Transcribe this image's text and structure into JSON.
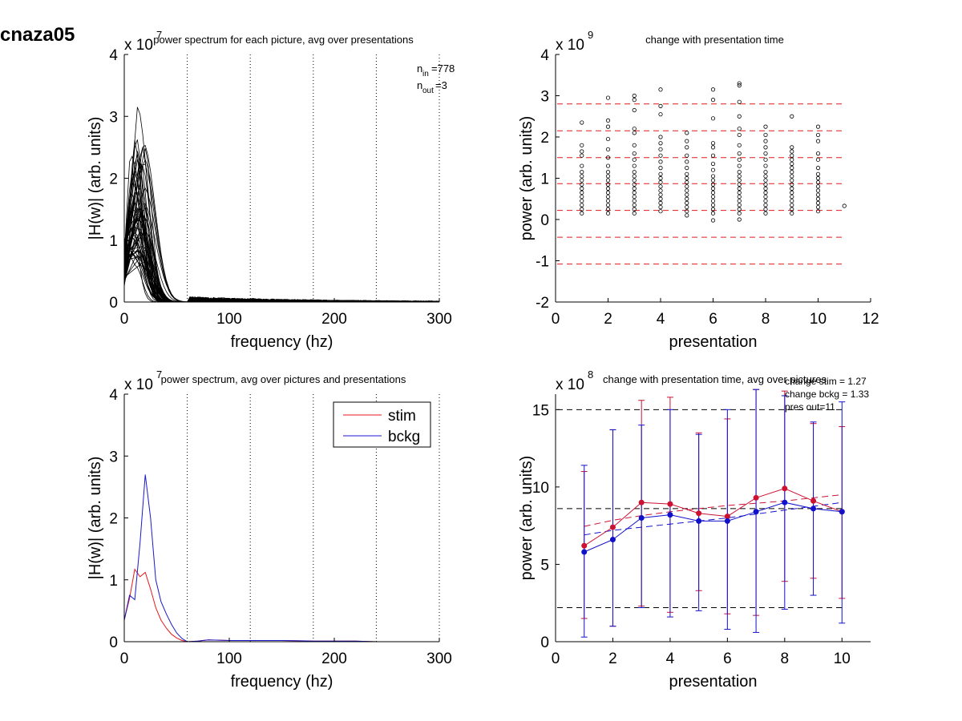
{
  "figure_title": "cnaza05",
  "chart_data": [
    {
      "id": "p1",
      "type": "line",
      "title": "power spectrum for each picture, avg over presentations",
      "xlabel": "frequency (hz)",
      "ylabel": "|H(w)| (arb. units)",
      "exponent_label": "x 10",
      "exponent": "7",
      "xlim": [
        0,
        300
      ],
      "ylim": [
        0,
        4
      ],
      "xticks": [
        "0",
        "100",
        "200",
        "300"
      ],
      "yticks": [
        "0",
        "1",
        "2",
        "3",
        "4"
      ],
      "vlines": [
        60,
        120,
        180,
        240,
        300
      ],
      "annotation": {
        "n_in_base": "n",
        "n_in_sub": "in",
        "n_in_value": "=778",
        "n_out_base": "n",
        "n_out_sub": "out",
        "n_out_value": "=3"
      },
      "freq_x": [
        0,
        5,
        10,
        15,
        20,
        25,
        30,
        35,
        40,
        45,
        50,
        55,
        60,
        65,
        70,
        75,
        80,
        90,
        100,
        110,
        120,
        140,
        160,
        180,
        200,
        220,
        240,
        260,
        280,
        300
      ],
      "shape_note": "many traces (about 60) with peaks between 0.5 and 3.15 near 5-20 Hz",
      "peak_max": 3.15,
      "curve_count": 60,
      "series_color": "#000000"
    },
    {
      "id": "p2",
      "type": "scatter",
      "title": "change with presentation time",
      "xlabel": "presentation",
      "ylabel": "power (arb. units)",
      "exponent_label": "x 10",
      "exponent": "9",
      "xlim": [
        0,
        12
      ],
      "ylim": [
        -2,
        4
      ],
      "xticks": [
        "0",
        "2",
        "4",
        "6",
        "8",
        "10",
        "12"
      ],
      "yticks": [
        "-2",
        "-1",
        "0",
        "1",
        "2",
        "3",
        "4"
      ],
      "hlines": [
        2.8,
        2.15,
        1.5,
        0.87,
        0.22,
        -0.43,
        -1.08
      ],
      "hline_color": "#e41a1c",
      "points": [
        {
          "x": 1,
          "y": [
            0.15,
            0.25,
            0.35,
            0.45,
            0.55,
            0.65,
            0.75,
            0.85,
            0.95,
            1.05,
            1.15,
            1.3,
            1.55,
            1.65,
            1.8,
            2.35
          ]
        },
        {
          "x": 2,
          "y": [
            0.15,
            0.25,
            0.35,
            0.45,
            0.55,
            0.65,
            0.75,
            0.85,
            0.95,
            1.05,
            1.15,
            1.3,
            1.5,
            1.7,
            1.95,
            2.25,
            2.4,
            2.95
          ]
        },
        {
          "x": 3,
          "y": [
            0.15,
            0.25,
            0.35,
            0.45,
            0.55,
            0.65,
            0.75,
            0.85,
            0.95,
            1.05,
            1.15,
            1.3,
            1.45,
            1.6,
            1.8,
            2.1,
            2.2,
            2.65,
            2.9,
            3.0
          ]
        },
        {
          "x": 4,
          "y": [
            0.2,
            0.3,
            0.4,
            0.5,
            0.6,
            0.7,
            0.8,
            0.9,
            1.0,
            1.1,
            1.25,
            1.4,
            1.55,
            1.7,
            1.85,
            2.0,
            2.55,
            2.75,
            3.15
          ]
        },
        {
          "x": 5,
          "y": [
            0.1,
            0.2,
            0.3,
            0.4,
            0.5,
            0.6,
            0.7,
            0.8,
            0.9,
            1.0,
            1.1,
            1.25,
            1.4,
            1.55,
            1.75,
            1.9,
            2.1
          ]
        },
        {
          "x": 6,
          "y": [
            -0.02,
            0.15,
            0.25,
            0.35,
            0.45,
            0.55,
            0.65,
            0.75,
            0.85,
            0.95,
            1.05,
            1.2,
            1.35,
            1.55,
            1.75,
            1.85,
            2.45,
            2.9,
            3.15
          ]
        },
        {
          "x": 7,
          "y": [
            0.0,
            0.15,
            0.25,
            0.35,
            0.45,
            0.55,
            0.65,
            0.75,
            0.85,
            0.95,
            1.05,
            1.15,
            1.3,
            1.45,
            1.6,
            1.8,
            2.05,
            2.2,
            2.5,
            2.85,
            3.25,
            3.3
          ]
        },
        {
          "x": 8,
          "y": [
            0.15,
            0.25,
            0.35,
            0.45,
            0.55,
            0.65,
            0.75,
            0.85,
            0.95,
            1.05,
            1.15,
            1.3,
            1.45,
            1.6,
            1.75,
            1.9,
            2.05,
            2.25
          ]
        },
        {
          "x": 9,
          "y": [
            0.15,
            0.25,
            0.35,
            0.45,
            0.55,
            0.65,
            0.75,
            0.85,
            0.95,
            1.05,
            1.15,
            1.25,
            1.35,
            1.45,
            1.55,
            1.65,
            1.75,
            2.5
          ]
        },
        {
          "x": 10,
          "y": [
            0.2,
            0.3,
            0.4,
            0.5,
            0.6,
            0.7,
            0.8,
            0.9,
            1.0,
            1.1,
            1.25,
            1.45,
            1.6,
            1.9,
            2.05,
            2.25
          ]
        },
        {
          "x": 11,
          "y": [
            0.33
          ]
        }
      ]
    },
    {
      "id": "p3",
      "type": "line",
      "title": "power spectrum, avg over pictures and presentations",
      "xlabel": "frequency (hz)",
      "ylabel": "|H(w)| (arb. units)",
      "exponent_label": "x 10",
      "exponent": "7",
      "xlim": [
        0,
        300
      ],
      "ylim": [
        0,
        4
      ],
      "xticks": [
        "0",
        "100",
        "200",
        "300"
      ],
      "yticks": [
        "0",
        "1",
        "2",
        "3",
        "4"
      ],
      "vlines": [
        60,
        120,
        180,
        240,
        300
      ],
      "legend": [
        {
          "name": "stim",
          "color": "#e41a1c"
        },
        {
          "name": "bckg",
          "color": "#1a1acc"
        }
      ],
      "series": [
        {
          "name": "stim",
          "color": "#e41a1c",
          "x": [
            0,
            5,
            10,
            15,
            20,
            25,
            30,
            35,
            40,
            45,
            50,
            55,
            60,
            70,
            80,
            100,
            120,
            150,
            180,
            200,
            220,
            240,
            260,
            280,
            300
          ],
          "y": [
            0.35,
            0.7,
            1.17,
            1.05,
            1.12,
            0.85,
            0.55,
            0.35,
            0.22,
            0.12,
            0.06,
            0.02,
            0.0,
            0.01,
            0.03,
            0.02,
            0.02,
            0.02,
            0.01,
            0.01,
            0.01,
            0.0,
            0.0,
            0.0,
            0.0
          ]
        },
        {
          "name": "bckg",
          "color": "#1a1acc",
          "x": [
            0,
            5,
            10,
            15,
            20,
            25,
            30,
            35,
            40,
            45,
            50,
            55,
            60,
            70,
            80,
            100,
            120,
            150,
            180,
            200,
            220,
            240,
            260,
            280,
            300
          ],
          "y": [
            0.35,
            0.75,
            0.68,
            1.6,
            2.7,
            2.0,
            1.0,
            0.65,
            0.45,
            0.28,
            0.14,
            0.05,
            0.0,
            0.01,
            0.03,
            0.02,
            0.02,
            0.02,
            0.01,
            0.01,
            0.01,
            0.0,
            0.0,
            0.0,
            0.0
          ]
        }
      ]
    },
    {
      "id": "p4",
      "type": "line",
      "title": "change with presentation time, avg over pictures",
      "xlabel": "presentation",
      "ylabel": "power (arb. units)",
      "exponent_label": "x 10",
      "exponent": "8",
      "xlim": [
        0,
        11
      ],
      "ylim": [
        0,
        16
      ],
      "xticks": [
        "0",
        "2",
        "4",
        "6",
        "8",
        "10"
      ],
      "yticks": [
        "0",
        "5",
        "10",
        "15"
      ],
      "hlines": [
        15.0,
        8.6,
        2.2
      ],
      "hline_color": "#000000",
      "annotations": [
        "change stim = 1.27",
        "change bckg = 1.33",
        "pres out=11"
      ],
      "x": [
        1,
        2,
        3,
        4,
        5,
        6,
        7,
        8,
        9,
        10
      ],
      "series": [
        {
          "name": "stim",
          "color": "#cc1133",
          "y": [
            6.2,
            7.4,
            9.0,
            8.9,
            8.3,
            8.1,
            9.3,
            9.9,
            9.1,
            8.4
          ],
          "err_low": [
            1.5,
            1.0,
            2.3,
            1.9,
            3.3,
            1.8,
            1.7,
            3.9,
            4.1,
            2.8
          ],
          "err_high": [
            11.0,
            13.7,
            15.6,
            15.8,
            13.5,
            14.4,
            16.3,
            16.2,
            14.1,
            13.9
          ],
          "fit": [
            7.45,
            7.85,
            8.15,
            8.4,
            8.6,
            8.8,
            8.95,
            9.1,
            9.3,
            9.5
          ]
        },
        {
          "name": "bckg",
          "color": "#1111cc",
          "y": [
            5.8,
            6.6,
            8.0,
            8.2,
            7.8,
            7.8,
            8.4,
            9.0,
            8.6,
            8.4
          ],
          "err_low": [
            0.3,
            1.0,
            2.2,
            1.6,
            2.0,
            0.8,
            0.6,
            2.1,
            3.0,
            1.2
          ],
          "err_high": [
            11.4,
            13.7,
            14.0,
            15.0,
            13.4,
            15.0,
            16.3,
            15.9,
            14.2,
            15.5
          ],
          "fit": [
            6.9,
            7.2,
            7.4,
            7.6,
            7.8,
            8.0,
            8.25,
            8.5,
            8.75,
            9.0
          ]
        }
      ]
    }
  ]
}
